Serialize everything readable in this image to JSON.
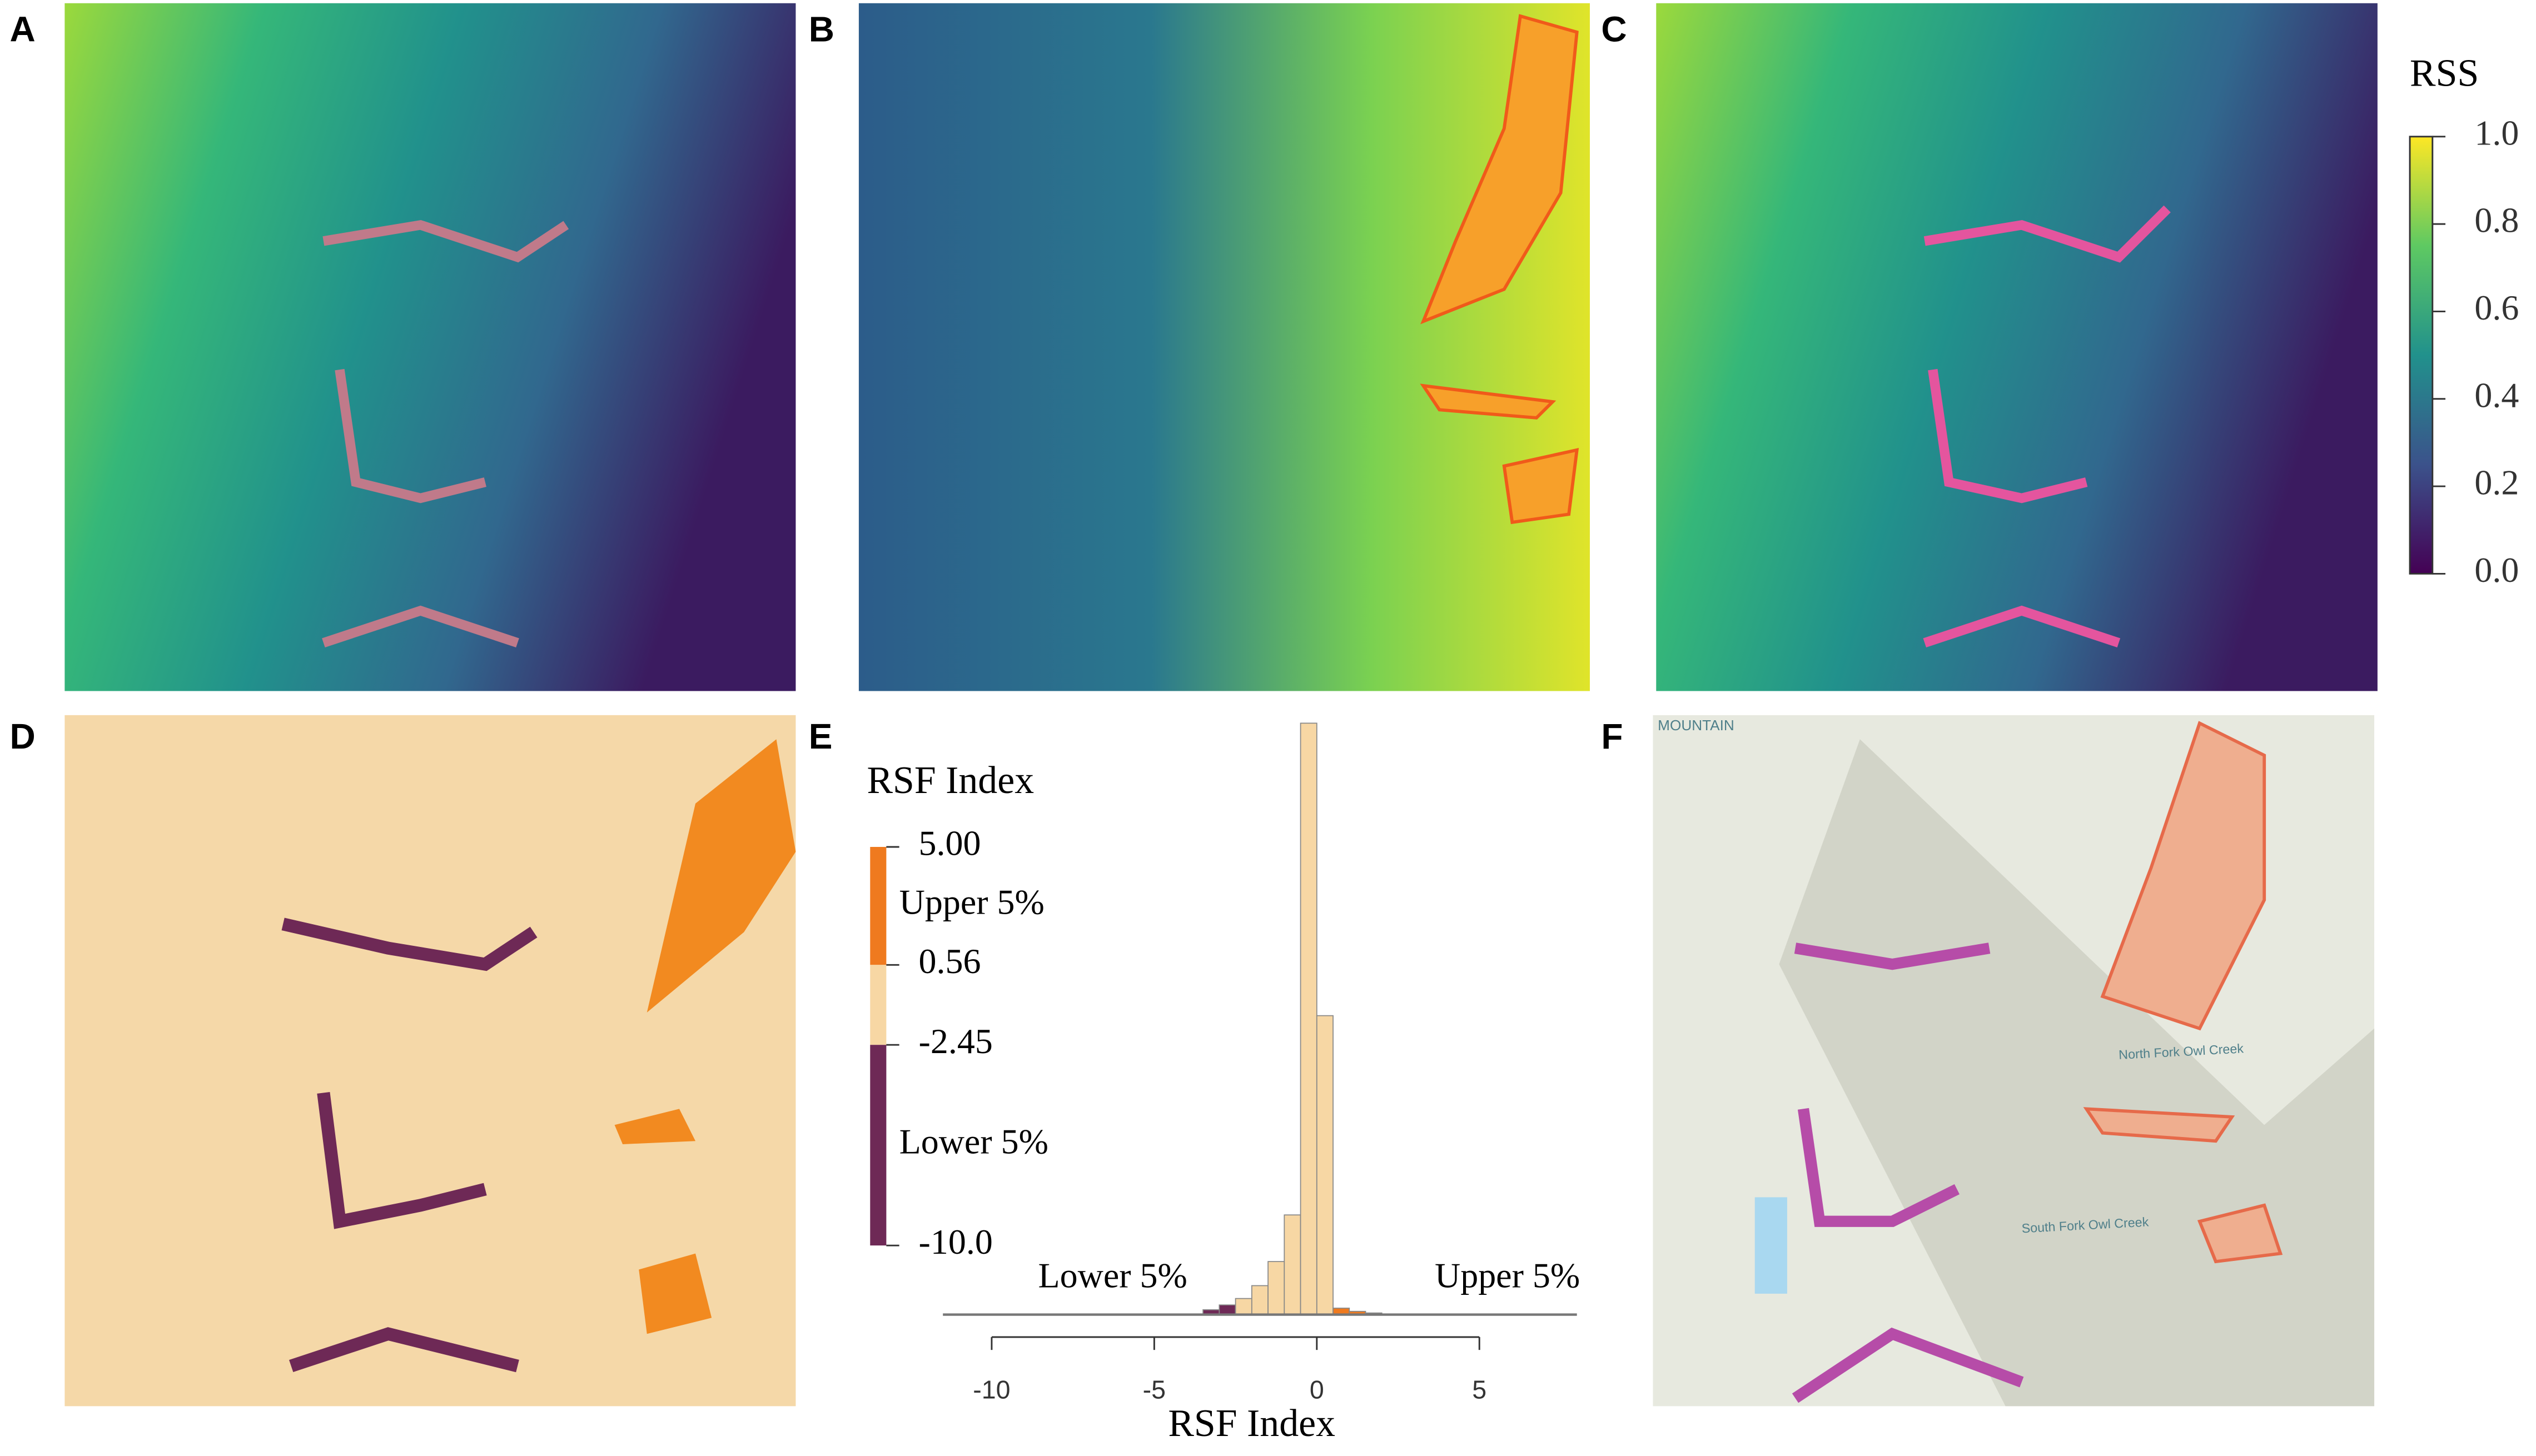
{
  "panels": {
    "labels": [
      "A",
      "B",
      "C",
      "D",
      "E",
      "F"
    ]
  },
  "colorbar": {
    "title": "RSS",
    "ticks": [
      {
        "value": 0,
        "label": "0.0"
      },
      {
        "value": 0.2,
        "label": "0.2"
      },
      {
        "value": 0.4,
        "label": "0.4"
      },
      {
        "value": 0.6,
        "label": "0.6"
      },
      {
        "value": 0.8,
        "label": "0.8"
      },
      {
        "value": 1,
        "label": "1.0"
      }
    ],
    "lim": [
      0,
      1
    ]
  },
  "map_f": {
    "labels": [
      "MOUNTAIN",
      "North Fork Owl Creek",
      "South Fork Owl Creek"
    ]
  },
  "chart_data": {
    "type": "histogram",
    "legend": {
      "title": "RSF Index",
      "ticks": [
        {
          "value": 5,
          "label": "5.00"
        },
        0.56,
        -2.45,
        {
          "value": -10,
          "label": "-10.0"
        }
      ],
      "segment_colors": [
        "#ef7a1f",
        "#f7d7a4",
        "#6e2956"
      ],
      "segment_labels": [
        "Upper 5%",
        null,
        "Lower 5%"
      ]
    },
    "bins": [
      -3.5,
      -3,
      -2.5,
      -2,
      -1.5,
      -1,
      -0.5,
      0,
      0.5,
      1,
      1.5,
      2
    ],
    "values": [
      3,
      6,
      10,
      18,
      33,
      62,
      368,
      186,
      4,
      2,
      1
    ],
    "xlim": [
      -11.5,
      8
    ],
    "xticks": [
      -10,
      -5,
      0,
      5
    ],
    "xlabel": "RSF Index",
    "annotations": [
      "Lower 5%",
      "Upper 5%"
    ]
  }
}
